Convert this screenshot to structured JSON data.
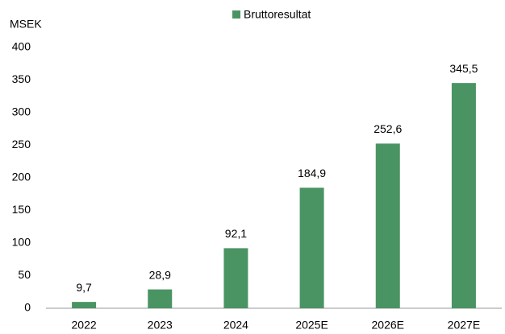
{
  "chart_data": {
    "type": "bar",
    "y_axis_label": "MSEK",
    "categories": [
      "2022",
      "2023",
      "2024",
      "2025E",
      "2026E",
      "2027E"
    ],
    "series": [
      {
        "name": "Bruttoresultat",
        "color": "#4a9463",
        "values": [
          9.7,
          28.9,
          92.1,
          184.9,
          252.6,
          345.5
        ],
        "value_labels": [
          "9,7",
          "28,9",
          "92,1",
          "184,9",
          "252,6",
          "345,5"
        ]
      }
    ],
    "ylim": [
      0,
      400
    ],
    "yticks": [
      0,
      50,
      100,
      150,
      200,
      250,
      300,
      350,
      400
    ],
    "grid": false,
    "legend": "top"
  }
}
